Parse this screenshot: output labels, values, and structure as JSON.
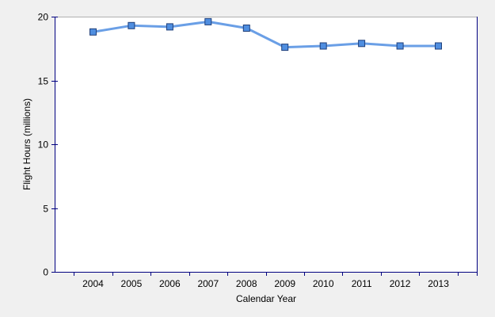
{
  "chart_data": {
    "type": "line",
    "title": "",
    "xlabel": "Calendar Year",
    "ylabel": "Flight Hours (millions)",
    "categories": [
      "2004",
      "2005",
      "2006",
      "2007",
      "2008",
      "2009",
      "2010",
      "2011",
      "2012",
      "2013"
    ],
    "series": [
      {
        "values": [
          18.8,
          19.3,
          19.2,
          19.6,
          19.1,
          17.6,
          17.7,
          17.9,
          17.7,
          17.7
        ]
      }
    ],
    "ylim": [
      0,
      20
    ],
    "yticks": [
      0,
      5,
      10,
      15,
      20
    ],
    "grid": false,
    "legend": "none",
    "colors": {
      "line": "#6a9fe6",
      "marker_fill": "#4f8ee0",
      "marker_stroke": "#1f3f7a",
      "axis": "#000080",
      "plot_bg": "#ffffff",
      "page_bg": "#f0f0f0"
    }
  }
}
